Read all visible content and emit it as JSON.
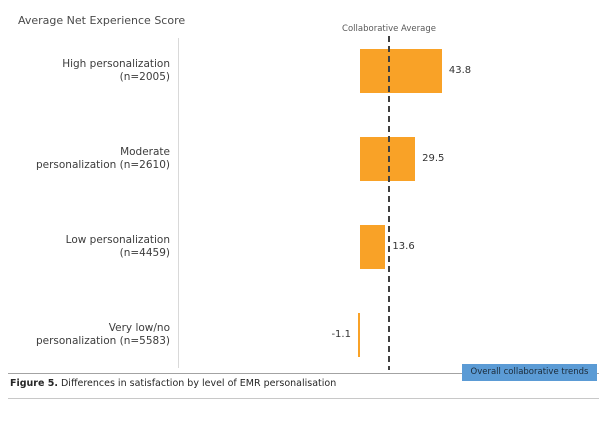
{
  "chart": {
    "title": "Average Net Experience Score",
    "reference_line": {
      "label": "Collaborative Average"
    }
  },
  "chart_data": {
    "type": "bar",
    "orientation": "horizontal",
    "title": "Average Net Experience Score",
    "xlabel": "",
    "ylabel": "",
    "xlim": [
      -10,
      55
    ],
    "grid": false,
    "legend": false,
    "categories": [
      "High personalization (n=2005)",
      "Moderate personalization (n=2610)",
      "Low personalization (n=4459)",
      "Very low/no personalization (n=5583)"
    ],
    "category_label_lines": [
      [
        "High personalization",
        "(n=2005)"
      ],
      [
        "Moderate",
        "personalization (n=2610)"
      ],
      [
        "Low personalization",
        "(n=4459)"
      ],
      [
        "Very low/no",
        "personalization (n=5583)"
      ]
    ],
    "values": [
      43.8,
      29.5,
      13.6,
      -1.1
    ],
    "value_labels": [
      "43.8",
      "29.5",
      "13.6",
      "-1.1"
    ],
    "bar_color": "#F9A227",
    "reference_line": {
      "label": "Collaborative Average",
      "style": "dashed",
      "approx_value": 15.5
    }
  },
  "footer": {
    "badge_label": "Overall collaborative trends",
    "badge_color": "#5B9BD5",
    "caption_bold": "Figure 5.",
    "caption_text": " Differences in satisfaction by level of EMR personalisation"
  }
}
